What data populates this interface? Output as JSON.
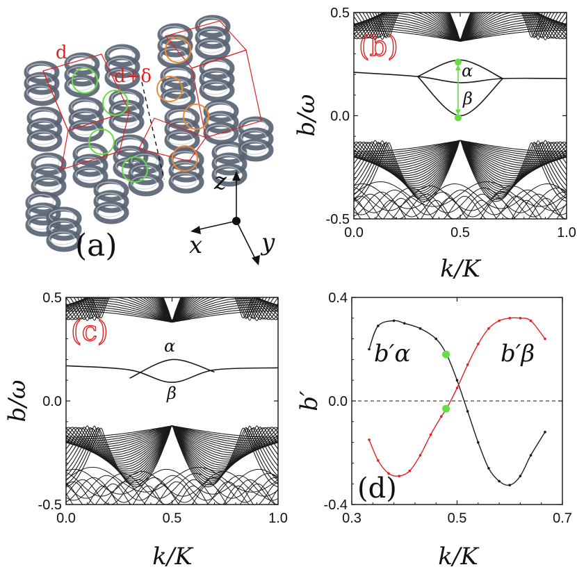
{
  "colors": {
    "band": "#1a1a1a",
    "red": "#e02020",
    "green": "#66dd44",
    "orange": "#ee8833",
    "helix": "#566170"
  },
  "panel_a": {
    "label": "(a)",
    "dist_label": "d",
    "dist2_label": "d+δ",
    "axes": {
      "z": "z",
      "x": "x",
      "y": "y"
    }
  },
  "chart_data": [
    {
      "panel": "(b)",
      "type": "line",
      "xlabel": "k/K",
      "ylabel": "b/ω",
      "xlim": [
        0.0,
        1.0
      ],
      "ylim": [
        -0.5,
        0.5
      ],
      "xticks": [
        "0.0",
        "0.5",
        "1.0"
      ],
      "yticks": [
        "-0.5",
        "0.0",
        "0.5"
      ],
      "grid": false,
      "annotations": [
        "α",
        "β"
      ],
      "series": [
        {
          "values_at_k": [
            [
              0.0,
              0.21
            ],
            [
              0.3,
              0.19
            ],
            [
              0.5,
              0.16
            ],
            [
              0.7,
              0.18
            ],
            [
              1.0,
              0.18
            ]
          ]
        },
        {
          "values_at_k": [
            [
              0.3,
              0.19
            ],
            [
              0.5,
              0.27
            ],
            [
              0.7,
              0.18
            ]
          ]
        },
        {
          "values_at_k": [
            [
              0.3,
              0.19
            ],
            [
              0.5,
              0.0
            ],
            [
              0.7,
              0.18
            ]
          ]
        }
      ],
      "marked_points": [
        [
          0.49,
          0.26
        ],
        [
          0.49,
          -0.01
        ]
      ]
    },
    {
      "panel": "(c)",
      "type": "line",
      "xlabel": "k/K",
      "ylabel": "b/ω",
      "xlim": [
        0.0,
        1.0
      ],
      "ylim": [
        -0.5,
        0.5
      ],
      "xticks": [
        "0.0",
        "0.5",
        "1.0"
      ],
      "yticks": [
        "-0.5",
        "0.0",
        "0.5"
      ],
      "grid": false,
      "annotations": [
        "α",
        "β"
      ],
      "series": [
        {
          "values_at_k": [
            [
              0.0,
              0.17
            ],
            [
              0.3,
              0.15
            ],
            [
              0.5,
              0.09
            ],
            [
              0.7,
              0.15
            ],
            [
              1.0,
              0.16
            ]
          ]
        },
        {
          "values_at_k": [
            [
              0.3,
              0.11
            ],
            [
              0.5,
              0.2
            ],
            [
              0.7,
              0.14
            ]
          ]
        }
      ]
    },
    {
      "panel": "(d)",
      "type": "line",
      "xlabel": "k/K",
      "ylabel": "b′",
      "xlim": [
        0.3,
        0.7
      ],
      "ylim": [
        -0.4,
        0.4
      ],
      "xticks": [
        "0.3",
        "0.5",
        "0.7"
      ],
      "yticks": [
        "-0.4",
        "0.0",
        "0.4"
      ],
      "grid": false,
      "series": [
        {
          "name": "b′α",
          "color": "#1a1a1a",
          "x": [
            0.333,
            0.35,
            0.38,
            0.4,
            0.43,
            0.46,
            0.48,
            0.5,
            0.52,
            0.54,
            0.56,
            0.58,
            0.6,
            0.62,
            0.64,
            0.667
          ],
          "y": [
            0.2,
            0.29,
            0.31,
            0.3,
            0.28,
            0.24,
            0.18,
            0.08,
            -0.04,
            -0.16,
            -0.26,
            -0.31,
            -0.325,
            -0.29,
            -0.21,
            -0.12
          ]
        },
        {
          "name": "b′β",
          "color": "#e02020",
          "x": [
            0.333,
            0.35,
            0.37,
            0.39,
            0.41,
            0.43,
            0.45,
            0.47,
            0.48,
            0.5,
            0.52,
            0.54,
            0.56,
            0.58,
            0.6,
            0.62,
            0.64,
            0.667
          ],
          "y": [
            -0.15,
            -0.23,
            -0.28,
            -0.29,
            -0.27,
            -0.21,
            -0.13,
            -0.06,
            -0.03,
            0.05,
            0.14,
            0.22,
            0.28,
            0.31,
            0.32,
            0.32,
            0.31,
            0.24
          ]
        }
      ],
      "reference_line_y": 0.0,
      "marked_points": [
        [
          0.479,
          0.18
        ],
        [
          0.479,
          -0.03
        ]
      ],
      "labels": {
        "alpha": "b′α",
        "beta": "b′β"
      }
    }
  ]
}
